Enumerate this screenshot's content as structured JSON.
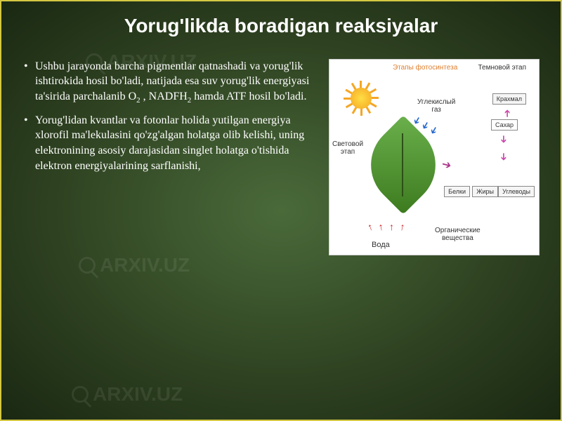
{
  "title": "Yorug'likda boradigan reaksiyalar",
  "bullets": [
    {
      "text_parts": [
        "Ushbu jarayonda barcha pigmentlar qatnashadi va yorug'lik ishtirokida hosil bo'ladi, natijada esa suv yorug'lik energiyasi ta'sirida parchalanib O",
        "2",
        " , NADFH",
        "2",
        " hamda ATF hosil bo'ladi."
      ]
    },
    {
      "text_parts": [
        "Yorug'lidan kvantlar va fotonlar holida yutilgan energiya xlorofil ma'lekulasini qo'zg'algan holatga olib kelishi, uning elektronining asosiy darajasidan singlet holatga o'tishida elektron energiyalarining sarflanishi,"
      ]
    }
  ],
  "diagram": {
    "title_left": "Этапы фотосинтеза",
    "title_right": "Темновой этап",
    "label_co2": "Углекислый\nгаз",
    "label_light": "Световой\nэтап",
    "label_water": "Вода",
    "label_organic": "Органические\nвещества",
    "box_starch": "Крахмал",
    "box_sugar": "Сахар",
    "box_protein": "Белки",
    "box_fat": "Жиры",
    "box_carb": "Углеводы",
    "colors": {
      "sun": "#f5a623",
      "leaf_light": "#6ab04c",
      "leaf_dark": "#3d7a1f",
      "arrow_blue": "#2266cc",
      "arrow_red": "#cc2222",
      "arrow_pink": "#cc44aa",
      "title_orange": "#e08030"
    }
  },
  "watermark": "ARXIV.UZ",
  "styling": {
    "slide_border": "#d4c843",
    "bg_gradient_inner": "#4a6a3a",
    "bg_gradient_outer": "#1a2812",
    "title_fontsize": 28,
    "body_fontsize": 16,
    "text_color": "#ffffff"
  }
}
